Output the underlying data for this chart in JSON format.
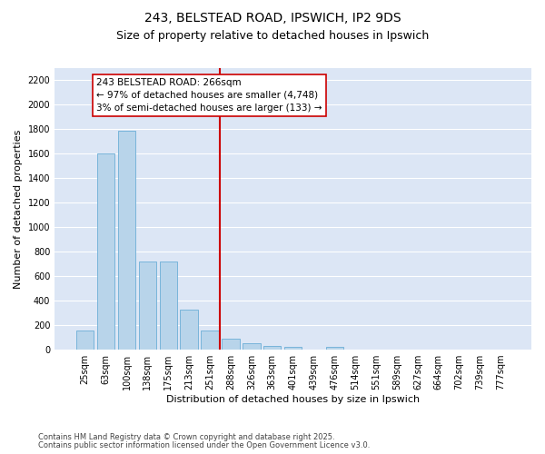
{
  "title1": "243, BELSTEAD ROAD, IPSWICH, IP2 9DS",
  "title2": "Size of property relative to detached houses in Ipswich",
  "xlabel": "Distribution of detached houses by size in Ipswich",
  "ylabel": "Number of detached properties",
  "categories": [
    "25sqm",
    "63sqm",
    "100sqm",
    "138sqm",
    "175sqm",
    "213sqm",
    "251sqm",
    "288sqm",
    "326sqm",
    "363sqm",
    "401sqm",
    "439sqm",
    "476sqm",
    "514sqm",
    "551sqm",
    "589sqm",
    "627sqm",
    "664sqm",
    "702sqm",
    "739sqm",
    "777sqm"
  ],
  "values": [
    160,
    1600,
    1790,
    720,
    720,
    325,
    160,
    90,
    55,
    30,
    22,
    0,
    20,
    0,
    0,
    0,
    0,
    0,
    0,
    0,
    0
  ],
  "bar_color": "#b8d4ea",
  "bar_edge_color": "#6baed6",
  "vline_x": 6.5,
  "vline_color": "#cc0000",
  "annotation_text": "243 BELSTEAD ROAD: 266sqm\n← 97% of detached houses are smaller (4,748)\n3% of semi-detached houses are larger (133) →",
  "annotation_box_color": "#ffffff",
  "annotation_box_edge_color": "#cc0000",
  "ylim": [
    0,
    2300
  ],
  "yticks": [
    0,
    200,
    400,
    600,
    800,
    1000,
    1200,
    1400,
    1600,
    1800,
    2000,
    2200
  ],
  "background_color": "#dce6f5",
  "grid_color": "#ffffff",
  "footnote1": "Contains HM Land Registry data © Crown copyright and database right 2025.",
  "footnote2": "Contains public sector information licensed under the Open Government Licence v3.0.",
  "title_fontsize": 10,
  "subtitle_fontsize": 9,
  "axis_label_fontsize": 8,
  "tick_fontsize": 7,
  "annot_fontsize": 7.5
}
